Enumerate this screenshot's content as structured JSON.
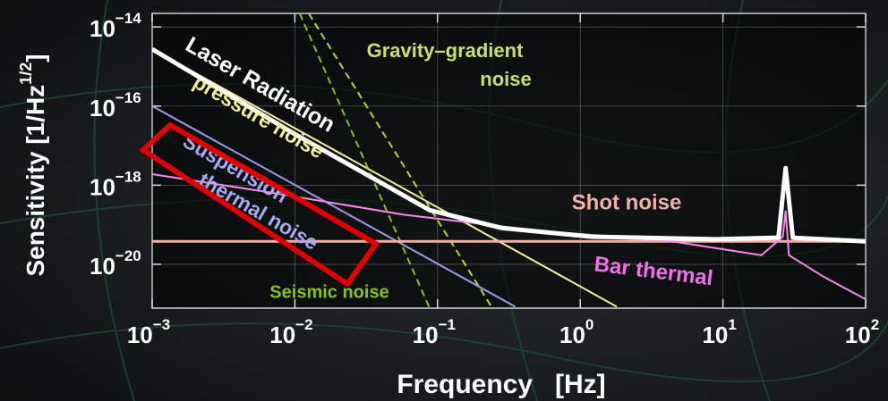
{
  "chart_data": {
    "type": "line",
    "xlabel": "Frequency   [Hz]",
    "ylabel": "Sensitivity [1/Hz1/2]",
    "xscale": "log",
    "yscale": "log",
    "xlim": [
      0.001,
      100
    ],
    "ylim": [
      7.8e-22,
      2.2e-14
    ],
    "xticks": [
      {
        "value": 0.001,
        "label": "10−3"
      },
      {
        "value": 0.01,
        "label": "10−2"
      },
      {
        "value": 0.1,
        "label": "10−1"
      },
      {
        "value": 1,
        "label": "100"
      },
      {
        "value": 10,
        "label": "101"
      },
      {
        "value": 100,
        "label": "102"
      }
    ],
    "yticks": [
      {
        "value": 1e-14,
        "label": "10−14"
      },
      {
        "value": 1e-16,
        "label": "10−16"
      },
      {
        "value": 1e-18,
        "label": "10−18"
      },
      {
        "value": 1e-20,
        "label": "10−20"
      }
    ],
    "grid": true,
    "series": [
      {
        "color": "#f2f0a0",
        "width": 2,
        "dashed": false,
        "x": [
          0.001,
          1.8
        ],
        "values": [
          2.75e-15,
          8.5e-22
        ]
      },
      {
        "color": "#9c9ce8",
        "width": 2,
        "dashed": false,
        "x": [
          0.001,
          0.35
        ],
        "values": [
          1e-16,
          8.5e-22
        ]
      },
      {
        "color": "#88c020",
        "width": 2,
        "dashed": true,
        "x": [
          0.0108,
          0.088
        ],
        "values": [
          2.2e-14,
          7.8e-22
        ]
      },
      {
        "color": "#b0d838",
        "width": 2,
        "dashed": true,
        "x": [
          0.0125,
          0.242
        ],
        "values": [
          2.2e-14,
          7.8e-22
        ]
      },
      {
        "color": "#f4b0a8",
        "width": 3,
        "dashed": false,
        "x": [
          0.001,
          100
        ],
        "values": [
          3.8e-20,
          3.8e-20
        ]
      },
      {
        "color": "#f48ce8",
        "width": 2,
        "dashed": false,
        "x": [
          0.001,
          0.0066,
          0.058,
          0.5,
          4.4,
          18.6,
          26.3,
          27.5,
          29.0,
          51.0,
          100
        ],
        "values": [
          1.9e-18,
          6.6e-19,
          1.8e-19,
          7.1e-20,
          3.8e-20,
          1.7e-20,
          5e-20,
          2.2e-19,
          1.7e-20,
          4.8e-21,
          1.3e-21
        ]
      },
      {
        "color": "#ffffff",
        "width": 5,
        "dashed": false,
        "x": [
          0.001,
          0.01,
          0.0277,
          0.088,
          0.28,
          1.19,
          8.95,
          24.5,
          27.5,
          30.9,
          100
        ],
        "values": [
          2.75e-15,
          1.95e-17,
          2.45e-18,
          2.34e-19,
          8.3e-20,
          5e-20,
          4.3e-20,
          4.7e-20,
          2.7e-18,
          4.7e-20,
          3.8e-20
        ]
      }
    ],
    "annotations": [
      {
        "text": "Laser Radiation",
        "color": "#ffffff"
      },
      {
        "text": "pressure noise",
        "color": "#f2f0a0"
      },
      {
        "text": "Suspension",
        "color": "#a8a8f0"
      },
      {
        "text": "thermal noise",
        "color": "#a8a8f0"
      },
      {
        "text": "Gravity–gradient",
        "color": "#c8e070"
      },
      {
        "text": "noise",
        "color": "#c8e070"
      },
      {
        "text": "Shot noise",
        "color": "#f4b0a8"
      },
      {
        "text": "Bar thermal",
        "color": "#f070e8"
      },
      {
        "text": "Seismic noise",
        "color": "#88c020"
      }
    ]
  }
}
